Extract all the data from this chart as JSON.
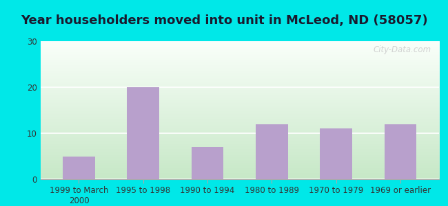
{
  "title": "Year householders moved into unit in McLeod, ND (58057)",
  "categories": [
    "1999 to March\n2000",
    "1995 to 1998",
    "1990 to 1994",
    "1980 to 1989",
    "1970 to 1979",
    "1969 or earlier"
  ],
  "values": [
    5,
    20,
    7,
    12,
    11,
    12
  ],
  "bar_color": "#b8a0cc",
  "ylim": [
    0,
    30
  ],
  "yticks": [
    0,
    10,
    20,
    30
  ],
  "background_top": "#f8fff8",
  "background_bottom": "#c8e8c8",
  "outer_background": "#00e8e8",
  "title_fontsize": 13,
  "tick_fontsize": 8.5,
  "watermark": "City-Data.com",
  "watermark_color": "#c8c8c8",
  "grid_color": "#ffffff",
  "spine_color": "#aaaaaa"
}
